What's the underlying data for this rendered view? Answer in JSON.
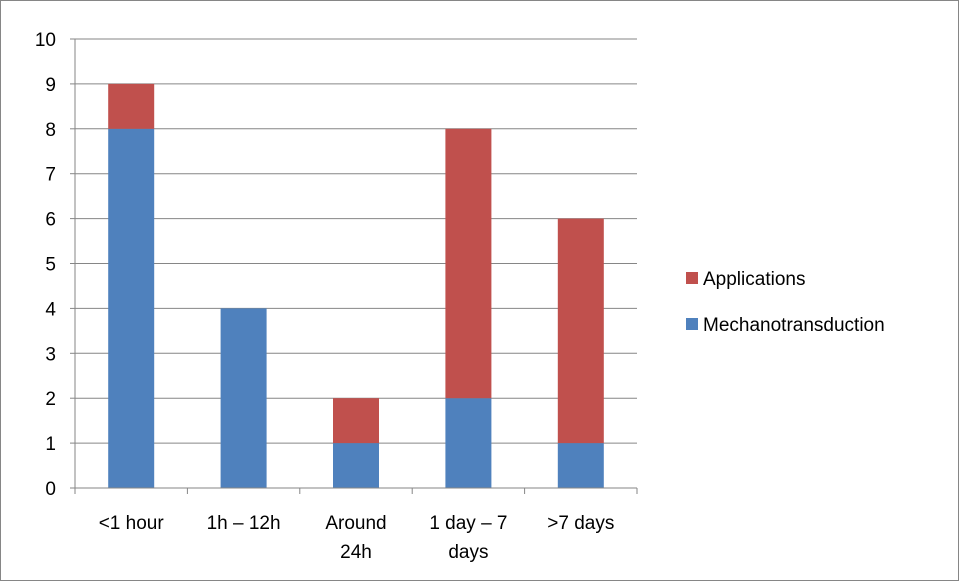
{
  "chart_data": {
    "type": "bar",
    "stacked": true,
    "categories": [
      [
        "<1 hour"
      ],
      [
        "1h – 12h"
      ],
      [
        "Around",
        "24h"
      ],
      [
        "1 day – 7",
        "days"
      ],
      [
        ">7 days"
      ]
    ],
    "series": [
      {
        "name": "Mechanotransduction",
        "values": [
          8,
          4,
          1,
          2,
          1
        ],
        "color": "#4f81bd"
      },
      {
        "name": "Applications",
        "values": [
          1,
          0,
          1,
          6,
          5
        ],
        "color": "#c0504d"
      }
    ],
    "ylim": [
      0,
      10
    ],
    "yticks": [
      0,
      1,
      2,
      3,
      4,
      5,
      6,
      7,
      8,
      9,
      10
    ],
    "grid": true,
    "gridlines": "horizontal",
    "legend_position": "right",
    "legend_order": [
      "Applications",
      "Mechanotransduction"
    ],
    "title": "",
    "xlabel": "",
    "ylabel": ""
  }
}
